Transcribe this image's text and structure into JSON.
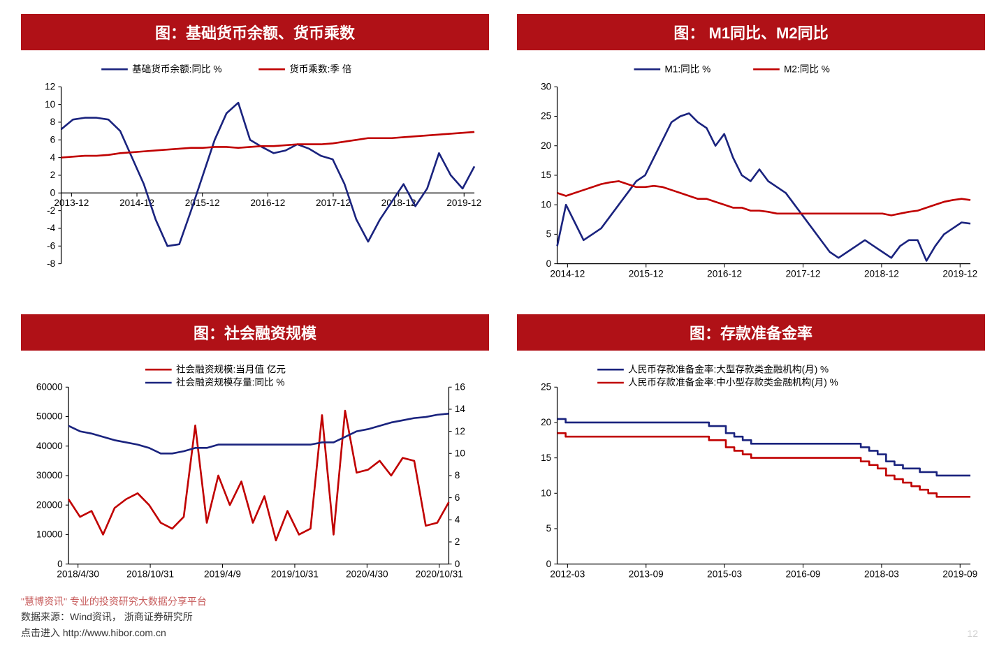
{
  "layout": {
    "grid": [
      2,
      2
    ],
    "page_number": "12"
  },
  "colors": {
    "title_bg": "#b01117",
    "series_navy": "#1a237e",
    "series_red": "#c00000",
    "axis": "#000000",
    "grid": "#ffffff",
    "background": "#ffffff"
  },
  "footer": {
    "watermark_line": "\"慧博资讯\" 专业的投资研究大数据分享平台",
    "source_line": "数据来源：Wind资讯， 浙商证券研究所",
    "url_line": "点击进入      http://www.hibor.com.cn"
  },
  "charts": {
    "top_left": {
      "type": "line",
      "title": "图：基础货币余额、货币乘数",
      "x_labels": [
        "2013-12",
        "2014-12",
        "2015-12",
        "2016-12",
        "2017-12",
        "2018-12",
        "2019-12"
      ],
      "ylim": [
        -8,
        12
      ],
      "ytick_step": 2,
      "line_width": 2.5,
      "series": [
        {
          "name": "基础货币余额:同比 %",
          "color": "#1a237e",
          "values": [
            7.2,
            8.3,
            8.5,
            8.5,
            8.3,
            7.0,
            4.0,
            1.0,
            -3.0,
            -6.0,
            -5.8,
            -2.0,
            2.0,
            6.0,
            9.0,
            10.2,
            6.0,
            5.2,
            4.5,
            4.8,
            5.5,
            5.0,
            4.2,
            3.8,
            1.0,
            -3.0,
            -5.5,
            -3.0,
            -1.0,
            1.0,
            -1.5,
            0.5,
            4.5,
            2.0,
            0.5,
            3.0
          ]
        },
        {
          "name": "货币乘数:季 倍",
          "color": "#c00000",
          "values": [
            4.0,
            4.1,
            4.2,
            4.2,
            4.3,
            4.5,
            4.6,
            4.7,
            4.8,
            4.9,
            5.0,
            5.1,
            5.1,
            5.2,
            5.2,
            5.1,
            5.2,
            5.3,
            5.3,
            5.4,
            5.5,
            5.5,
            5.5,
            5.6,
            5.8,
            6.0,
            6.2,
            6.2,
            6.2,
            6.3,
            6.4,
            6.5,
            6.6,
            6.7,
            6.8,
            6.9
          ]
        }
      ]
    },
    "top_right": {
      "type": "line",
      "title": "图： M1同比、M2同比",
      "x_labels": [
        "2014-12",
        "2015-12",
        "2016-12",
        "2017-12",
        "2018-12",
        "2019-12"
      ],
      "ylim": [
        0,
        30
      ],
      "ytick_step": 5,
      "line_width": 2.5,
      "series": [
        {
          "name": "M1:同比 %",
          "color": "#1a237e",
          "values": [
            3,
            10,
            7,
            4,
            5,
            6,
            8,
            10,
            12,
            14,
            15,
            18,
            21,
            24,
            25,
            25.5,
            24,
            23,
            20,
            22,
            18,
            15,
            14,
            16,
            14,
            13,
            12,
            10,
            8,
            6,
            4,
            2,
            1,
            2,
            3,
            4,
            3,
            2,
            1,
            3,
            4,
            4,
            0.5,
            3,
            5,
            6,
            7,
            6.8
          ]
        },
        {
          "name": "M2:同比 %",
          "color": "#c00000",
          "values": [
            12,
            11.5,
            12,
            12.5,
            13,
            13.5,
            13.8,
            14,
            13.5,
            13,
            13,
            13.2,
            13,
            12.5,
            12,
            11.5,
            11,
            11,
            10.5,
            10,
            9.5,
            9.5,
            9,
            9,
            8.8,
            8.5,
            8.5,
            8.5,
            8.5,
            8.5,
            8.5,
            8.5,
            8.5,
            8.5,
            8.5,
            8.5,
            8.5,
            8.5,
            8.2,
            8.5,
            8.8,
            9,
            9.5,
            10,
            10.5,
            10.8,
            11,
            10.8
          ]
        }
      ]
    },
    "bottom_left": {
      "type": "line-dual-axis",
      "title": "图：社会融资规模",
      "x_labels": [
        "2018/4/30",
        "2018/10/31",
        "2019/4/9",
        "2019/10/31",
        "2020/4/30",
        "2020/10/31"
      ],
      "ylim_left": [
        0,
        60000
      ],
      "ytick_step_left": 10000,
      "ylim_right": [
        0,
        16
      ],
      "ytick_step_right": 2,
      "line_width": 2.5,
      "series": [
        {
          "name": "社会融资规模:当月值 亿元",
          "color": "#c00000",
          "axis": "left",
          "values": [
            22000,
            16000,
            18000,
            10000,
            19000,
            22000,
            24000,
            20000,
            14000,
            12000,
            16000,
            47000,
            14000,
            30000,
            20000,
            28000,
            14000,
            23000,
            8000,
            18000,
            10000,
            12000,
            50500,
            10000,
            52000,
            31000,
            32000,
            35000,
            30000,
            36000,
            35000,
            13000,
            14000,
            21000
          ]
        },
        {
          "name": "社会融资规模存量:同比 %",
          "color": "#1a237e",
          "axis": "right",
          "values": [
            12.5,
            12,
            11.8,
            11.5,
            11.2,
            11,
            10.8,
            10.5,
            10,
            10,
            10.2,
            10.5,
            10.5,
            10.8,
            10.8,
            10.8,
            10.8,
            10.8,
            10.8,
            10.8,
            10.8,
            10.8,
            11,
            11,
            11.5,
            12,
            12.2,
            12.5,
            12.8,
            13,
            13.2,
            13.3,
            13.5,
            13.6
          ]
        }
      ]
    },
    "bottom_right": {
      "type": "step-line",
      "title": "图：存款准备金率",
      "x_labels": [
        "2012-03",
        "2013-09",
        "2015-03",
        "2016-09",
        "2018-03",
        "2019-09"
      ],
      "ylim": [
        0,
        25
      ],
      "ytick_step": 5,
      "line_width": 2.5,
      "series": [
        {
          "name": "人民币存款准备金率:大型存款类金融机构(月) %",
          "color": "#1a237e",
          "values": [
            20.5,
            20,
            20,
            20,
            20,
            20,
            20,
            20,
            20,
            20,
            20,
            20,
            20,
            20,
            20,
            20,
            20,
            20,
            19.5,
            19.5,
            18.5,
            18,
            17.5,
            17,
            17,
            17,
            17,
            17,
            17,
            17,
            17,
            17,
            17,
            17,
            17,
            17,
            16.5,
            16,
            15.5,
            14.5,
            14,
            13.5,
            13.5,
            13,
            13,
            12.5,
            12.5,
            12.5,
            12.5,
            12.5
          ]
        },
        {
          "name": "人民币存款准备金率:中小型存款类金融机构(月) %",
          "color": "#c00000",
          "values": [
            18.5,
            18,
            18,
            18,
            18,
            18,
            18,
            18,
            18,
            18,
            18,
            18,
            18,
            18,
            18,
            18,
            18,
            18,
            17.5,
            17.5,
            16.5,
            16,
            15.5,
            15,
            15,
            15,
            15,
            15,
            15,
            15,
            15,
            15,
            15,
            15,
            15,
            15,
            14.5,
            14,
            13.5,
            12.5,
            12,
            11.5,
            11,
            10.5,
            10,
            9.5,
            9.5,
            9.5,
            9.5,
            9.5
          ]
        }
      ]
    }
  }
}
